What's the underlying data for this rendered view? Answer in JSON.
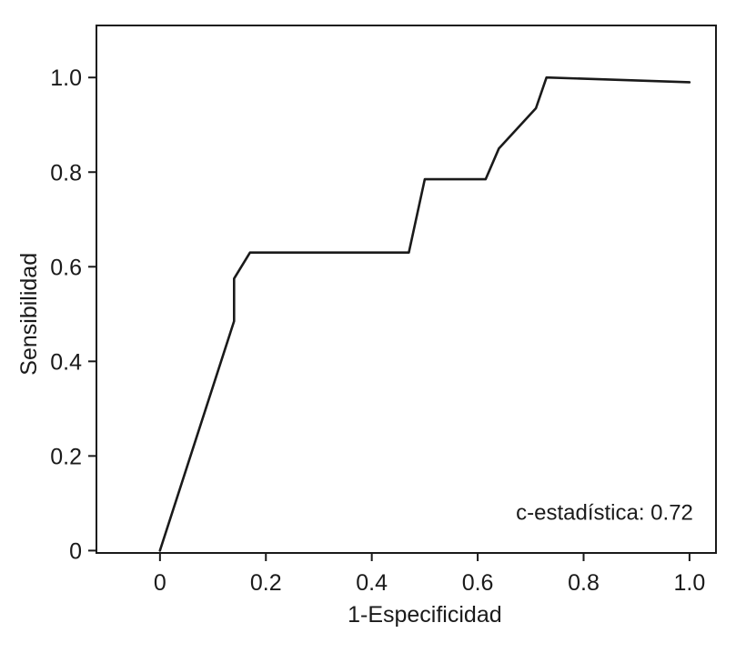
{
  "chart_data": {
    "type": "line",
    "title": "",
    "xlabel": "1-Especificidad",
    "ylabel": "Sensibilidad",
    "xlim": [
      -0.12,
      1.05
    ],
    "ylim": [
      -0.005,
      1.11
    ],
    "grid": false,
    "x_ticks": [
      {
        "value": 0,
        "label": "0"
      },
      {
        "value": 0.2,
        "label": "0.2"
      },
      {
        "value": 0.4,
        "label": "0.4"
      },
      {
        "value": 0.6,
        "label": "0.6"
      },
      {
        "value": 0.8,
        "label": "0.8"
      },
      {
        "value": 1.0,
        "label": "1.0"
      }
    ],
    "y_ticks": [
      {
        "value": 0,
        "label": "0"
      },
      {
        "value": 0.2,
        "label": "0.2"
      },
      {
        "value": 0.4,
        "label": "0.4"
      },
      {
        "value": 0.6,
        "label": "0.6"
      },
      {
        "value": 0.8,
        "label": "0.8"
      },
      {
        "value": 1.0,
        "label": "1.0"
      }
    ],
    "series": [
      {
        "color": "#1a1a1a",
        "x": [
          0,
          0.14,
          0.14,
          0.17,
          0.47,
          0.5,
          0.615,
          0.64,
          0.71,
          0.73,
          1.0
        ],
        "y": [
          0,
          0.485,
          0.575,
          0.63,
          0.63,
          0.785,
          0.785,
          0.85,
          0.935,
          1.0,
          0.99
        ]
      }
    ],
    "annotation": "c-estadística: 0.72"
  }
}
